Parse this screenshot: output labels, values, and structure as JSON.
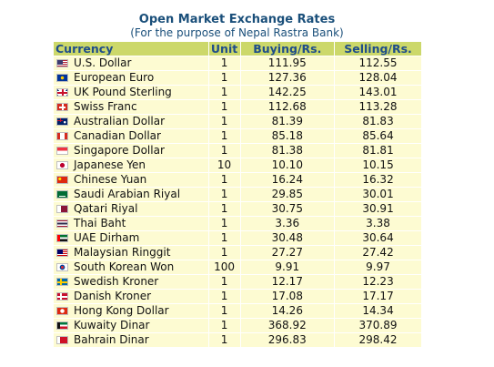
{
  "header": {
    "title": "Open Market Exchange Rates",
    "subtitle": "(For the purpose of Nepal Rastra Bank)"
  },
  "table": {
    "columns": {
      "currency": "Currency",
      "unit": "Unit",
      "buying": "Buying/Rs.",
      "selling": "Selling/Rs."
    },
    "rows": [
      {
        "name": "U.S. Dollar",
        "unit": "1",
        "buying": "111.95",
        "selling": "112.55",
        "flag_icon": "us-flag-icon"
      },
      {
        "name": "European Euro",
        "unit": "1",
        "buying": "127.36",
        "selling": "128.04",
        "flag_icon": "eu-flag-icon"
      },
      {
        "name": "UK Pound Sterling",
        "unit": "1",
        "buying": "142.25",
        "selling": "143.01",
        "flag_icon": "uk-flag-icon"
      },
      {
        "name": "Swiss Franc",
        "unit": "1",
        "buying": "112.68",
        "selling": "113.28",
        "flag_icon": "ch-flag-icon"
      },
      {
        "name": "Australian Dollar",
        "unit": "1",
        "buying": "81.39",
        "selling": "81.83",
        "flag_icon": "au-flag-icon"
      },
      {
        "name": "Canadian Dollar",
        "unit": "1",
        "buying": "85.18",
        "selling": "85.64",
        "flag_icon": "ca-flag-icon"
      },
      {
        "name": "Singapore Dollar",
        "unit": "1",
        "buying": "81.38",
        "selling": "81.81",
        "flag_icon": "sg-flag-icon"
      },
      {
        "name": "Japanese Yen",
        "unit": "10",
        "buying": "10.10",
        "selling": "10.15",
        "flag_icon": "jp-flag-icon"
      },
      {
        "name": "Chinese Yuan",
        "unit": "1",
        "buying": "16.24",
        "selling": "16.32",
        "flag_icon": "cn-flag-icon"
      },
      {
        "name": "Saudi Arabian Riyal",
        "unit": "1",
        "buying": "29.85",
        "selling": "30.01",
        "flag_icon": "sa-flag-icon"
      },
      {
        "name": "Qatari Riyal",
        "unit": "1",
        "buying": "30.75",
        "selling": "30.91",
        "flag_icon": "qa-flag-icon"
      },
      {
        "name": "Thai Baht",
        "unit": "1",
        "buying": "3.36",
        "selling": "3.38",
        "flag_icon": "th-flag-icon"
      },
      {
        "name": "UAE Dirham",
        "unit": "1",
        "buying": "30.48",
        "selling": "30.64",
        "flag_icon": "ae-flag-icon"
      },
      {
        "name": "Malaysian Ringgit",
        "unit": "1",
        "buying": "27.27",
        "selling": "27.42",
        "flag_icon": "my-flag-icon"
      },
      {
        "name": "South Korean Won",
        "unit": "100",
        "buying": "9.91",
        "selling": "9.97",
        "flag_icon": "kr-flag-icon"
      },
      {
        "name": "Swedish Kroner",
        "unit": "1",
        "buying": "12.17",
        "selling": "12.23",
        "flag_icon": "se-flag-icon"
      },
      {
        "name": "Danish Kroner",
        "unit": "1",
        "buying": "17.08",
        "selling": "17.17",
        "flag_icon": "dk-flag-icon"
      },
      {
        "name": "Hong Kong Dollar",
        "unit": "1",
        "buying": "14.26",
        "selling": "14.34",
        "flag_icon": "hk-flag-icon"
      },
      {
        "name": "Kuwaity Dinar",
        "unit": "1",
        "buying": "368.92",
        "selling": "370.89",
        "flag_icon": "kw-flag-icon"
      },
      {
        "name": "Bahrain Dinar",
        "unit": "1",
        "buying": "296.83",
        "selling": "298.42",
        "flag_icon": "bh-flag-icon"
      }
    ]
  },
  "colors": {
    "header_bg": "#ccd86a",
    "header_text": "#1e4d8a",
    "row_bg": "#fdfbd2",
    "title_text": "#1a4f7a"
  }
}
